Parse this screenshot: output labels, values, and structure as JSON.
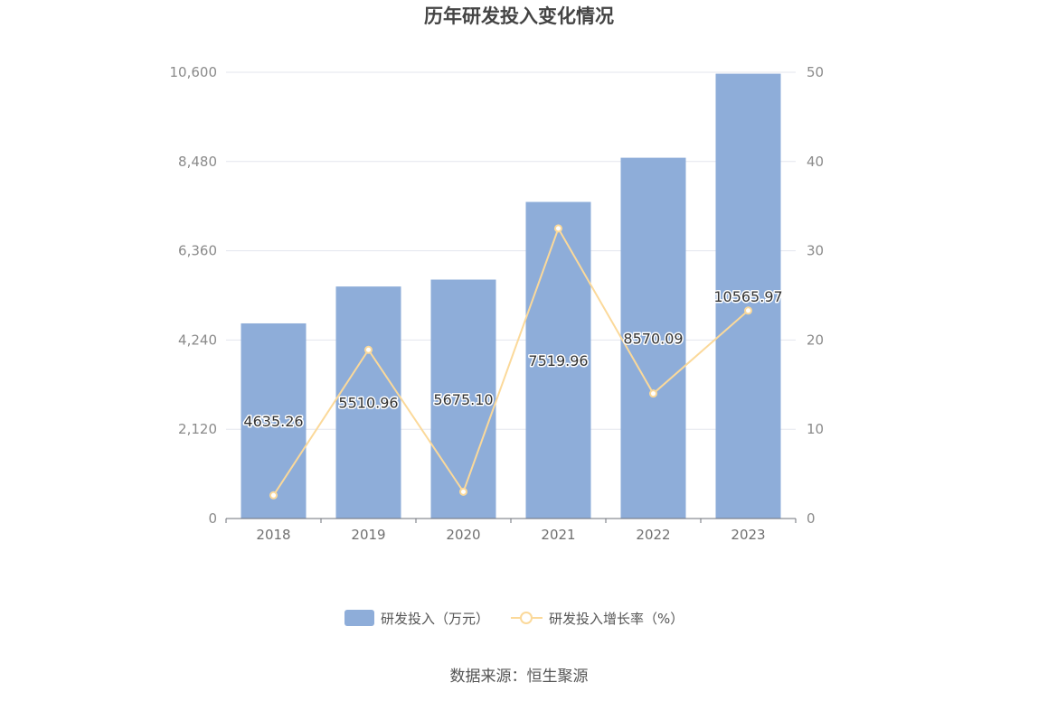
{
  "chart_data": {
    "type": "bar",
    "title": "历年研发投入变化情况",
    "categories": [
      "2018",
      "2019",
      "2020",
      "2021",
      "2022",
      "2023"
    ],
    "series": [
      {
        "name": "研发投入（万元）",
        "type": "bar",
        "axis": "left",
        "color": "#8eadd9",
        "values": [
          4635.26,
          5510.96,
          5675.1,
          7519.96,
          8570.09,
          10565.97
        ],
        "labels": [
          "4635.26",
          "5510.96",
          "5675.10",
          "7519.96",
          "8570.09",
          "10565.97"
        ]
      },
      {
        "name": "研发投入增长率（%）",
        "type": "line",
        "axis": "right",
        "color": "#fbd99a",
        "values": [
          2.6,
          18.9,
          3.0,
          32.5,
          14.0,
          23.3
        ]
      }
    ],
    "y_left": {
      "min": 0,
      "max": 10600,
      "ticks": [
        "0",
        "2,120",
        "4,240",
        "6,360",
        "8,480",
        "10,600"
      ]
    },
    "y_right": {
      "min": 0,
      "max": 50,
      "ticks": [
        "0",
        "10",
        "20",
        "30",
        "40",
        "50"
      ]
    },
    "grid": true,
    "legend_position": "bottom-center"
  },
  "source": "数据来源：恒生聚源"
}
